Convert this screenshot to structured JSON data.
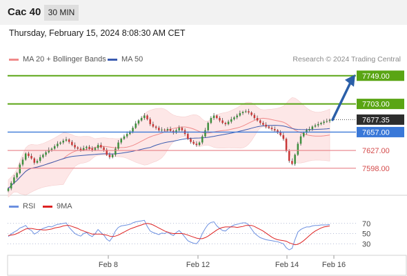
{
  "header": {
    "symbol": "Cac 40",
    "timeframe": "30 MIN"
  },
  "datetime": "Thursday, February 15, 2024 8:08:30 AM CET",
  "credit": "Research © 2024 Trading Central",
  "colors": {
    "resistance": "#5aa514",
    "pivot": "#3a78d8",
    "support": "#e87f86",
    "current": "#2d2d2d",
    "arrow": "#2b5fa8",
    "ma20": "#f08a8a",
    "ma50": "#3a5bb0",
    "bands": "#fde3e3",
    "candle_up": "#3d8f3d",
    "candle_down": "#c83737",
    "rsi": "#6b8fe0",
    "rsi_ma": "#dd2222"
  },
  "chart_data": [
    {
      "type": "candlestick",
      "title": "Cac 40",
      "timeframe": "30 MIN",
      "legend": [
        {
          "name": "MA 20 + Bollinger Bands",
          "color": "#f08a8a"
        },
        {
          "name": "MA 50",
          "color": "#3a5bb0"
        }
      ],
      "x_ticks": [
        "Feb 8",
        "Feb 12",
        "Feb 14",
        "Feb 16"
      ],
      "ylim": [
        7555,
        7760
      ],
      "levels": [
        {
          "label": "7749.00",
          "value": 7749,
          "kind": "resistance"
        },
        {
          "label": "7703.00",
          "value": 7703,
          "kind": "resistance"
        },
        {
          "label": "7677.35",
          "value": 7677.35,
          "kind": "current"
        },
        {
          "label": "7657.00",
          "value": 7657,
          "kind": "pivot"
        },
        {
          "label": "7627.00",
          "value": 7627,
          "kind": "support"
        },
        {
          "label": "7598.00",
          "value": 7598,
          "kind": "support"
        }
      ],
      "close": [
        7565,
        7574,
        7583,
        7590,
        7604,
        7612,
        7622,
        7618,
        7614,
        7607,
        7610,
        7616,
        7620,
        7624,
        7628,
        7630,
        7634,
        7638,
        7640,
        7643,
        7645,
        7641,
        7636,
        7632,
        7630,
        7628,
        7631,
        7633,
        7630,
        7628,
        7631,
        7636,
        7632,
        7628,
        7620,
        7616,
        7620,
        7630,
        7640,
        7646,
        7650,
        7654,
        7658,
        7664,
        7671,
        7676,
        7680,
        7684,
        7678,
        7670,
        7666,
        7664,
        7660,
        7661,
        7660,
        7662,
        7659,
        7656,
        7660,
        7664,
        7660,
        7654,
        7646,
        7641,
        7638,
        7636,
        7640,
        7650,
        7660,
        7672,
        7680,
        7684,
        7680,
        7676,
        7672,
        7670,
        7674,
        7678,
        7681,
        7684,
        7688,
        7690,
        7691,
        7689,
        7685,
        7680,
        7676,
        7672,
        7669,
        7666,
        7664,
        7662,
        7660,
        7657,
        7652,
        7646,
        7626,
        7610,
        7605,
        7620,
        7638,
        7650,
        7656,
        7660,
        7662,
        7666,
        7668,
        7670,
        7672,
        7674,
        7675,
        7677
      ]
    },
    {
      "type": "line",
      "title": "RSI",
      "legend": [
        {
          "name": "RSI",
          "color": "#6b8fe0"
        },
        {
          "name": "9MA",
          "color": "#dd2222"
        }
      ],
      "y_ticks": [
        70,
        50,
        30
      ],
      "ylim": [
        10,
        90
      ],
      "rsi": [
        44,
        49,
        53,
        56,
        61,
        63,
        66,
        59,
        56,
        49,
        52,
        57,
        60,
        62,
        64,
        63,
        66,
        68,
        69,
        70,
        71,
        62,
        56,
        50,
        47,
        45,
        50,
        52,
        47,
        44,
        50,
        58,
        52,
        47,
        39,
        35,
        43,
        55,
        62,
        65,
        66,
        67,
        68,
        71,
        73,
        74,
        75,
        76,
        64,
        55,
        52,
        50,
        48,
        51,
        50,
        53,
        49,
        46,
        52,
        56,
        50,
        43,
        36,
        33,
        31,
        30,
        37,
        50,
        60,
        68,
        72,
        73,
        65,
        60,
        56,
        55,
        60,
        64,
        67,
        68,
        70,
        71,
        71,
        67,
        59,
        51,
        46,
        42,
        40,
        38,
        37,
        36,
        35,
        34,
        32,
        30,
        22,
        18,
        21,
        38,
        53,
        58,
        61,
        63,
        63,
        65,
        66,
        66,
        67,
        67,
        67,
        68
      ],
      "ma9": [
        46,
        47,
        48,
        50,
        53,
        56,
        59,
        60,
        60,
        59,
        58,
        58,
        57,
        57,
        58,
        59,
        61,
        62,
        63,
        65,
        66,
        66,
        64,
        62,
        60,
        57,
        55,
        53,
        51,
        49,
        49,
        49,
        49,
        48,
        47,
        45,
        44,
        45,
        47,
        50,
        53,
        56,
        59,
        61,
        63,
        65,
        67,
        69,
        70,
        69,
        67,
        64,
        61,
        58,
        55,
        53,
        51,
        50,
        50,
        50,
        50,
        49,
        47,
        45,
        43,
        41,
        40,
        40,
        42,
        45,
        49,
        53,
        57,
        60,
        62,
        63,
        63,
        63,
        63,
        62,
        63,
        64,
        66,
        66,
        66,
        64,
        61,
        58,
        55,
        51,
        47,
        43,
        40,
        38,
        37,
        36,
        35,
        32,
        30,
        28,
        29,
        32,
        36,
        41,
        46,
        51,
        55,
        58,
        61,
        63,
        64,
        65
      ]
    }
  ]
}
